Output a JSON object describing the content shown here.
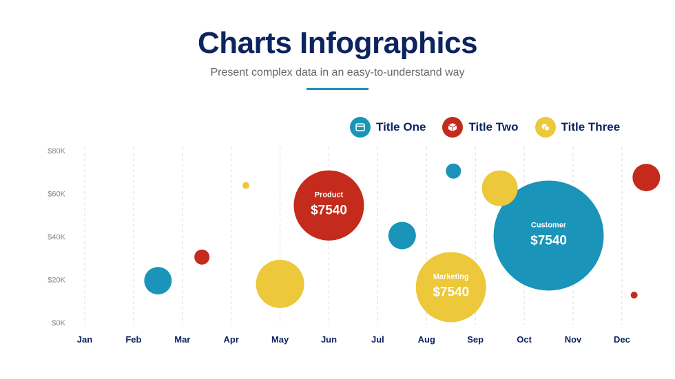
{
  "header": {
    "title": "Charts Infographics",
    "subtitle": "Present complex data in an easy-to-understand way"
  },
  "legend": [
    {
      "label": "Title One",
      "color": "#1a94b9",
      "icon": "card-icon"
    },
    {
      "label": "Title Two",
      "color": "#c42b1c",
      "icon": "box-icon"
    },
    {
      "label": "Title Three",
      "color": "#ecc83a",
      "icon": "coins-icon"
    }
  ],
  "chart_data": {
    "type": "scatter",
    "title": "",
    "xlabel": "",
    "ylabel": "",
    "categories": [
      "Jan",
      "Feb",
      "Mar",
      "Apr",
      "May",
      "Jun",
      "Jul",
      "Aug",
      "Sep",
      "Oct",
      "Nov",
      "Dec"
    ],
    "yticks": [
      "$0K",
      "$20K",
      "$40K",
      "$60K",
      "$80K"
    ],
    "ylim": [
      0,
      80000
    ],
    "grid": "vertical-dashed",
    "series": [
      {
        "name": "Title One",
        "color": "#1a94b9",
        "points": [
          {
            "x": 1.5,
            "y": 19500,
            "size": 20
          },
          {
            "x": 6.5,
            "y": 40500,
            "size": 20
          },
          {
            "x": 7.55,
            "y": 70500,
            "size": 11
          },
          {
            "x": 9.5,
            "y": 40500,
            "size": 80,
            "label": "Customer",
            "value_label": "$7540"
          }
        ]
      },
      {
        "name": "Title Two",
        "color": "#c42b1c",
        "points": [
          {
            "x": 2.4,
            "y": 30500,
            "size": 11
          },
          {
            "x": 5.0,
            "y": 54500,
            "size": 51,
            "label": "Product",
            "value_label": "$7540"
          },
          {
            "x": 11.5,
            "y": 67500,
            "size": 20
          },
          {
            "x": 11.25,
            "y": 12800,
            "size": 5
          }
        ]
      },
      {
        "name": "Title Three",
        "color": "#ecc83a",
        "points": [
          {
            "x": 3.3,
            "y": 63800,
            "size": 5
          },
          {
            "x": 4.0,
            "y": 18000,
            "size": 35
          },
          {
            "x": 7.5,
            "y": 16500,
            "size": 51,
            "label": "Marketing",
            "value_label": "$7540"
          },
          {
            "x": 8.5,
            "y": 62500,
            "size": 26
          }
        ]
      }
    ]
  }
}
